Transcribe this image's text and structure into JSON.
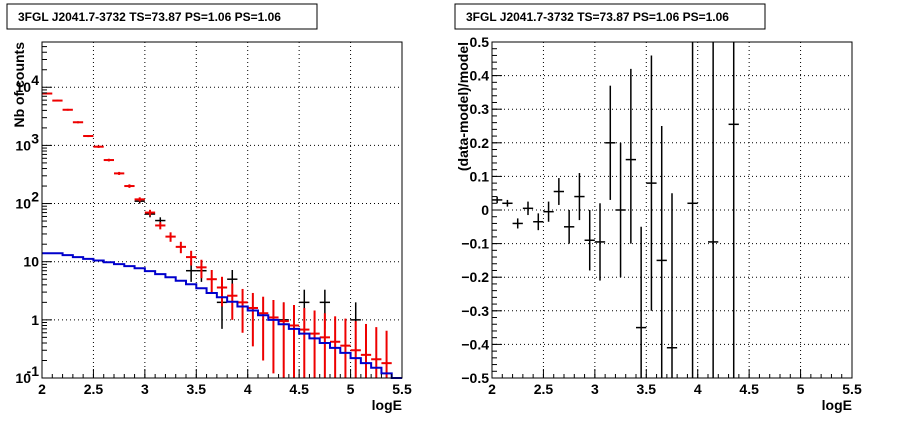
{
  "chart_data": [
    {
      "type": "scatter",
      "title": "3FGL J2041.7-3732 TS=73.87 PS=1.06 PS=1.06",
      "xlabel": "logE",
      "ylabel": "Nb of counts",
      "xlim": [
        2,
        5.5
      ],
      "ylim": [
        0.1,
        60000
      ],
      "yscale": "log",
      "grid": true,
      "x_ticks": [
        "2",
        "2.5",
        "3",
        "3.5",
        "4",
        "4.5",
        "5",
        "5.5"
      ],
      "y_ticks": [
        {
          "value": 0.1,
          "label": "10",
          "exp": "-1"
        },
        {
          "value": 1,
          "label": "1",
          "exp": ""
        },
        {
          "value": 10,
          "label": "10",
          "exp": ""
        },
        {
          "value": 100,
          "label": "10",
          "exp": "2"
        },
        {
          "value": 1000,
          "label": "10",
          "exp": "3"
        },
        {
          "value": 10000,
          "label": "10",
          "exp": "4"
        }
      ],
      "bin_width": 0.1,
      "series": [
        {
          "color": "#000000",
          "points": [
            {
              "x": 2.95,
              "y": 110,
              "lo": 100,
              "hi": 121
            },
            {
              "x": 3.05,
              "y": 66,
              "lo": 58,
              "hi": 74
            },
            {
              "x": 3.15,
              "y": 51,
              "lo": 44,
              "hi": 58
            },
            {
              "x": 3.45,
              "y": 7,
              "lo": 4.5,
              "hi": 9.5
            },
            {
              "x": 3.55,
              "y": 7,
              "lo": 4.5,
              "hi": 9.5
            },
            {
              "x": 3.75,
              "y": 2,
              "lo": 0.7,
              "hi": 3.3
            },
            {
              "x": 3.85,
              "y": 5,
              "lo": 2.8,
              "hi": 7.2
            },
            {
              "x": 4.35,
              "y": 1,
              "lo": 0.15,
              "hi": 2
            },
            {
              "x": 4.55,
              "y": 2,
              "lo": 0.7,
              "hi": 3.3
            },
            {
              "x": 4.75,
              "y": 2,
              "lo": 0.7,
              "hi": 3.3
            },
            {
              "x": 5.05,
              "y": 1,
              "lo": 0.15,
              "hi": 2
            }
          ]
        },
        {
          "color": "#ee0000",
          "points": [
            {
              "x": 2.05,
              "y": 7800,
              "lo": 7550,
              "hi": 8050
            },
            {
              "x": 2.15,
              "y": 5900,
              "lo": 5700,
              "hi": 6100
            },
            {
              "x": 2.25,
              "y": 4100,
              "lo": 3950,
              "hi": 4250
            },
            {
              "x": 2.35,
              "y": 2500,
              "lo": 2400,
              "hi": 2600
            },
            {
              "x": 2.45,
              "y": 1450,
              "lo": 1390,
              "hi": 1510
            },
            {
              "x": 2.55,
              "y": 950,
              "lo": 905,
              "hi": 995
            },
            {
              "x": 2.65,
              "y": 560,
              "lo": 530,
              "hi": 590
            },
            {
              "x": 2.75,
              "y": 330,
              "lo": 310,
              "hi": 350
            },
            {
              "x": 2.85,
              "y": 200,
              "lo": 186,
              "hi": 214
            },
            {
              "x": 2.95,
              "y": 118,
              "lo": 108,
              "hi": 128
            },
            {
              "x": 3.05,
              "y": 70,
              "lo": 62,
              "hi": 78
            },
            {
              "x": 3.15,
              "y": 42,
              "lo": 36,
              "hi": 48
            },
            {
              "x": 3.25,
              "y": 27,
              "lo": 22,
              "hi": 32
            },
            {
              "x": 3.35,
              "y": 18,
              "lo": 14,
              "hi": 22
            },
            {
              "x": 3.45,
              "y": 12,
              "lo": 8.6,
              "hi": 15.4
            },
            {
              "x": 3.55,
              "y": 8,
              "lo": 5.2,
              "hi": 10.8
            },
            {
              "x": 3.65,
              "y": 5,
              "lo": 2.8,
              "hi": 7.2
            },
            {
              "x": 3.75,
              "y": 3.6,
              "lo": 1.7,
              "hi": 5.5
            },
            {
              "x": 3.85,
              "y": 2.6,
              "lo": 1.0,
              "hi": 4.2
            },
            {
              "x": 3.95,
              "y": 2.0,
              "lo": 0.6,
              "hi": 3.4
            },
            {
              "x": 4.05,
              "y": 1.6,
              "lo": 0.35,
              "hi": 2.9
            },
            {
              "x": 4.15,
              "y": 1.3,
              "lo": 0.2,
              "hi": 2.5
            },
            {
              "x": 4.25,
              "y": 1.1,
              "lo": 0.12,
              "hi": 2.2
            },
            {
              "x": 4.35,
              "y": 0.95,
              "lo": 0.1,
              "hi": 2.0
            },
            {
              "x": 4.45,
              "y": 0.8,
              "lo": 0.1,
              "hi": 1.8
            },
            {
              "x": 4.55,
              "y": 0.68,
              "lo": 0.1,
              "hi": 1.6
            },
            {
              "x": 4.65,
              "y": 0.58,
              "lo": 0.1,
              "hi": 1.45
            },
            {
              "x": 4.75,
              "y": 0.5,
              "lo": 0.1,
              "hi": 1.3
            },
            {
              "x": 4.85,
              "y": 0.42,
              "lo": 0.1,
              "hi": 1.15
            },
            {
              "x": 4.95,
              "y": 0.36,
              "lo": 0.1,
              "hi": 1.05
            },
            {
              "x": 5.05,
              "y": 0.3,
              "lo": 0.1,
              "hi": 0.95
            },
            {
              "x": 5.15,
              "y": 0.25,
              "lo": 0.1,
              "hi": 0.85
            },
            {
              "x": 5.25,
              "y": 0.21,
              "lo": 0.1,
              "hi": 0.75
            },
            {
              "x": 5.35,
              "y": 0.18,
              "lo": 0.1,
              "hi": 0.65
            }
          ]
        },
        {
          "color": "#0000cc",
          "style": "step",
          "values": [
            14,
            14,
            13,
            12,
            11.2,
            10.5,
            9.8,
            9.1,
            8.4,
            7.7,
            6.9,
            6.1,
            5.4,
            4.7,
            4.1,
            3.5,
            2.9,
            2.45,
            2.05,
            1.7,
            1.45,
            1.2,
            1.0,
            0.84,
            0.7,
            0.58,
            0.48,
            0.4,
            0.33,
            0.27,
            0.22,
            0.18,
            0.15,
            0.12,
            0.1
          ]
        }
      ]
    },
    {
      "type": "scatter",
      "title": "3FGL J2041.7-3732 TS=73.87 PS=1.06 PS=1.06",
      "xlabel": "logE",
      "ylabel": "(data-model)/model",
      "xlim": [
        2,
        5.5
      ],
      "ylim": [
        -0.5,
        0.5
      ],
      "grid": true,
      "x_ticks": [
        "2",
        "2.5",
        "3",
        "3.5",
        "4",
        "4.5",
        "5",
        "5.5"
      ],
      "y_ticks": [
        "-0.5",
        "-0.4",
        "-0.3",
        "-0.2",
        "-0.1",
        "0",
        "0.1",
        "0.2",
        "0.3",
        "0.4",
        "0.5"
      ],
      "bin_width": 0.1,
      "series": [
        {
          "color": "#000000",
          "points": [
            {
              "x": 2.05,
              "y": 0.03,
              "lo": 0.02,
              "hi": 0.04
            },
            {
              "x": 2.15,
              "y": 0.02,
              "lo": 0.01,
              "hi": 0.03
            },
            {
              "x": 2.25,
              "y": -0.04,
              "lo": -0.055,
              "hi": -0.025
            },
            {
              "x": 2.35,
              "y": 0.005,
              "lo": -0.015,
              "hi": 0.025
            },
            {
              "x": 2.45,
              "y": -0.035,
              "lo": -0.06,
              "hi": -0.01
            },
            {
              "x": 2.55,
              "y": -0.005,
              "lo": -0.035,
              "hi": 0.025
            },
            {
              "x": 2.65,
              "y": 0.055,
              "lo": 0.015,
              "hi": 0.095
            },
            {
              "x": 2.75,
              "y": -0.05,
              "lo": -0.1,
              "hi": 0.0
            },
            {
              "x": 2.85,
              "y": 0.04,
              "lo": -0.03,
              "hi": 0.11
            },
            {
              "x": 2.95,
              "y": -0.09,
              "lo": -0.18,
              "hi": 0.0
            },
            {
              "x": 3.05,
              "y": -0.095,
              "lo": -0.21,
              "hi": 0.02
            },
            {
              "x": 3.15,
              "y": 0.2,
              "lo": 0.03,
              "hi": 0.37
            },
            {
              "x": 3.25,
              "y": 0.0,
              "lo": -0.2,
              "hi": 0.2
            },
            {
              "x": 3.35,
              "y": 0.15,
              "lo": -0.1,
              "hi": 0.42
            },
            {
              "x": 3.45,
              "y": -0.35,
              "lo": -0.5,
              "hi": -0.05
            },
            {
              "x": 3.55,
              "y": 0.08,
              "lo": -0.3,
              "hi": 0.46
            },
            {
              "x": 3.65,
              "y": -0.15,
              "lo": -0.5,
              "hi": 0.25
            },
            {
              "x": 3.75,
              "y": -0.41,
              "lo": -0.5,
              "hi": 0.05
            },
            {
              "x": 3.95,
              "y": 0.02,
              "lo": -0.5,
              "hi": 0.5
            },
            {
              "x": 4.15,
              "y": -0.095,
              "lo": -0.5,
              "hi": 0.5
            },
            {
              "x": 4.35,
              "y": 0.255,
              "lo": -0.5,
              "hi": 0.5
            }
          ]
        }
      ]
    }
  ]
}
